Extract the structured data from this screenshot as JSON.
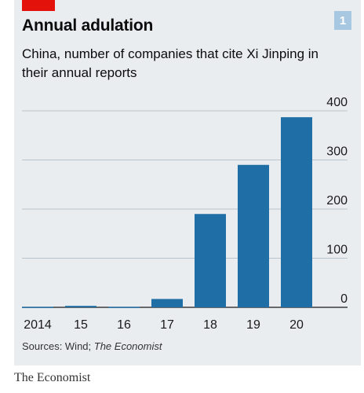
{
  "badge": "1",
  "source": {
    "prefix": "Sources: Wind; ",
    "italic": "The Economist"
  },
  "footer": "The Economist",
  "chart_data": {
    "type": "bar",
    "title": "Annual adulation",
    "subtitle": "China, number of companies that cite Xi Jinping in their annual reports",
    "categories": [
      "2014",
      "15",
      "16",
      "17",
      "18",
      "19",
      "20"
    ],
    "values": [
      1,
      3,
      1,
      17,
      190,
      290,
      387
    ],
    "ylim": [
      0,
      400
    ],
    "yticks": [
      0,
      100,
      200,
      300,
      400
    ],
    "y_axis_side": "right",
    "grid": true,
    "bar_color": "#1f6ea5"
  }
}
